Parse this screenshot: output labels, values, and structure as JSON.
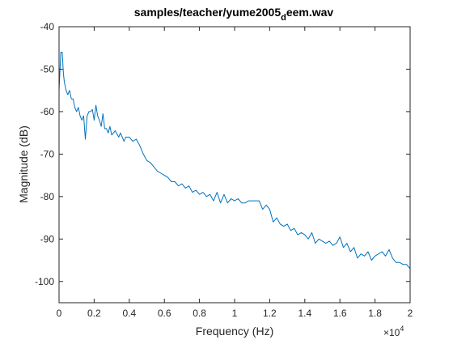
{
  "colors": {
    "line": "#0072bd",
    "axes": "#262626",
    "background": "#ffffff"
  },
  "chart_data": {
    "type": "line",
    "title": {
      "main": "samples/teacher/yume2005",
      "subscript": "d",
      "rest": "eem.wav"
    },
    "xlabel": "Frequency (Hz)",
    "ylabel": "Magnitude (dB)",
    "x_exponent": {
      "base": "×10",
      "power": "4"
    },
    "xlim": [
      0,
      20000
    ],
    "ylim": [
      -105,
      -40
    ],
    "x_tick_values": [
      0,
      2000,
      4000,
      6000,
      8000,
      10000,
      12000,
      14000,
      16000,
      18000,
      20000
    ],
    "x_tick_labels": [
      "0",
      "0.2",
      "0.4",
      "0.6",
      "0.8",
      "1",
      "1.2",
      "1.4",
      "1.6",
      "1.8",
      "2"
    ],
    "y_tick_values": [
      -40,
      -50,
      -60,
      -70,
      -80,
      -90,
      -100
    ],
    "y_tick_labels": [
      "-40",
      "-50",
      "-60",
      "-70",
      "-80",
      "-90",
      "-100"
    ],
    "grid": false,
    "legend": "none",
    "series": [
      {
        "x": [
          0,
          100,
          180,
          250,
          300,
          400,
          500,
          600,
          700,
          800,
          900,
          1000,
          1100,
          1200,
          1300,
          1400,
          1500,
          1600,
          1700,
          1800,
          1900,
          2000,
          2100,
          2200,
          2300,
          2400,
          2500,
          2600,
          2700,
          2800,
          2900,
          3000,
          3200,
          3400,
          3500,
          3700,
          3800,
          4000,
          4200,
          4400,
          4600,
          4800,
          5000,
          5200,
          5400,
          5600,
          5800,
          6000,
          6200,
          6400,
          6600,
          6800,
          7000,
          7200,
          7400,
          7600,
          7800,
          8000,
          8200,
          8400,
          8600,
          8800,
          9000,
          9200,
          9400,
          9600,
          9800,
          10000,
          10200,
          10400,
          10600,
          10800,
          11000,
          11200,
          11400,
          11600,
          11800,
          12000,
          12200,
          12400,
          12600,
          12800,
          13000,
          13200,
          13400,
          13600,
          13800,
          14000,
          14200,
          14400,
          14600,
          14800,
          15000,
          15200,
          15400,
          15600,
          15800,
          16000,
          16200,
          16400,
          16600,
          16800,
          17000,
          17200,
          17400,
          17600,
          17800,
          18000,
          18200,
          18400,
          18600,
          18800,
          19000,
          19200,
          19400,
          19600,
          19800,
          20000
        ],
        "y": [
          -55,
          -46,
          -46,
          -51,
          -53,
          -55,
          -56,
          -55,
          -57,
          -57,
          -59,
          -60,
          -59,
          -61,
          -62,
          -61,
          -66.5,
          -61,
          -60,
          -60,
          -59.5,
          -62,
          -58.5,
          -61,
          -62,
          -63.5,
          -60.5,
          -64,
          -64,
          -65,
          -63.5,
          -65.5,
          -64.5,
          -66,
          -65,
          -67,
          -66,
          -66,
          -67,
          -66.5,
          -68,
          -70,
          -71.5,
          -72,
          -73,
          -74,
          -74.5,
          -75,
          -75.5,
          -76.5,
          -76.5,
          -77.5,
          -77,
          -78,
          -77.5,
          -79,
          -78.5,
          -79.5,
          -79,
          -80,
          -79.5,
          -81,
          -79,
          -81.5,
          -79.5,
          -81.5,
          -80.5,
          -81,
          -80.5,
          -81.5,
          -81.5,
          -81,
          -81,
          -81,
          -81,
          -83,
          -82,
          -83,
          -86,
          -85,
          -86.5,
          -87,
          -86.5,
          -88,
          -87.5,
          -89,
          -88.5,
          -89,
          -90,
          -88.5,
          -91,
          -90,
          -90.5,
          -91,
          -90.5,
          -91.5,
          -91,
          -89.5,
          -92,
          -91,
          -93,
          -92,
          -94.5,
          -93.5,
          -94,
          -93,
          -95,
          -94,
          -93.5,
          -93,
          -94,
          -92.5,
          -94.5,
          -95.5,
          -95.5,
          -96,
          -96,
          -97
        ]
      }
    ]
  }
}
